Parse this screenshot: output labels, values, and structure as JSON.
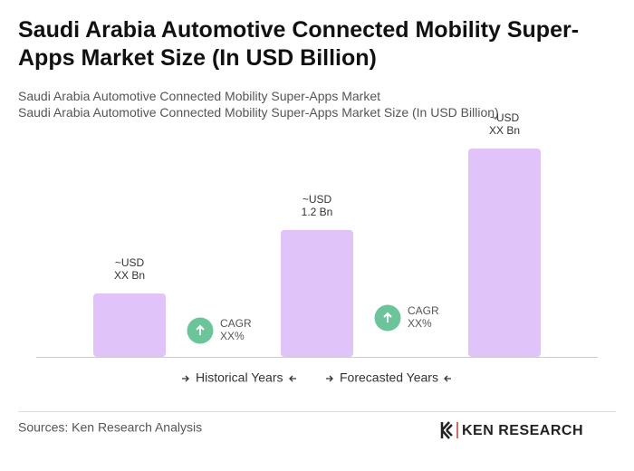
{
  "chart_data": {
    "type": "bar",
    "title": "Saudi Arabia Automotive Connected Mobility Super-Apps Market Size (In USD Billion)",
    "subtitles": [
      "Saudi Arabia Automotive Connected Mobility Super-Apps Market",
      "Saudi Arabia Automotive Connected Mobility Super-Apps Market Size (In USD Billion)"
    ],
    "categories": [
      null,
      null,
      null
    ],
    "values": [
      0.6,
      1.2,
      1.97
    ],
    "value_labels": [
      [
        "~USD",
        "XX Bn"
      ],
      [
        "~USD",
        "1.2 Bn"
      ],
      [
        "~USD",
        "XX Bn"
      ]
    ],
    "color": "#e0c3f8",
    "annotations": [
      [
        "CAGR",
        "XX%"
      ],
      [
        "CAGR",
        "XX%"
      ]
    ],
    "annotation_color": "#6cc49a",
    "legend": [
      "Historical Years",
      "Forecasted Years"
    ],
    "source": "Sources: Ken Research Analysis",
    "logo": "KEN RESEARCH"
  }
}
